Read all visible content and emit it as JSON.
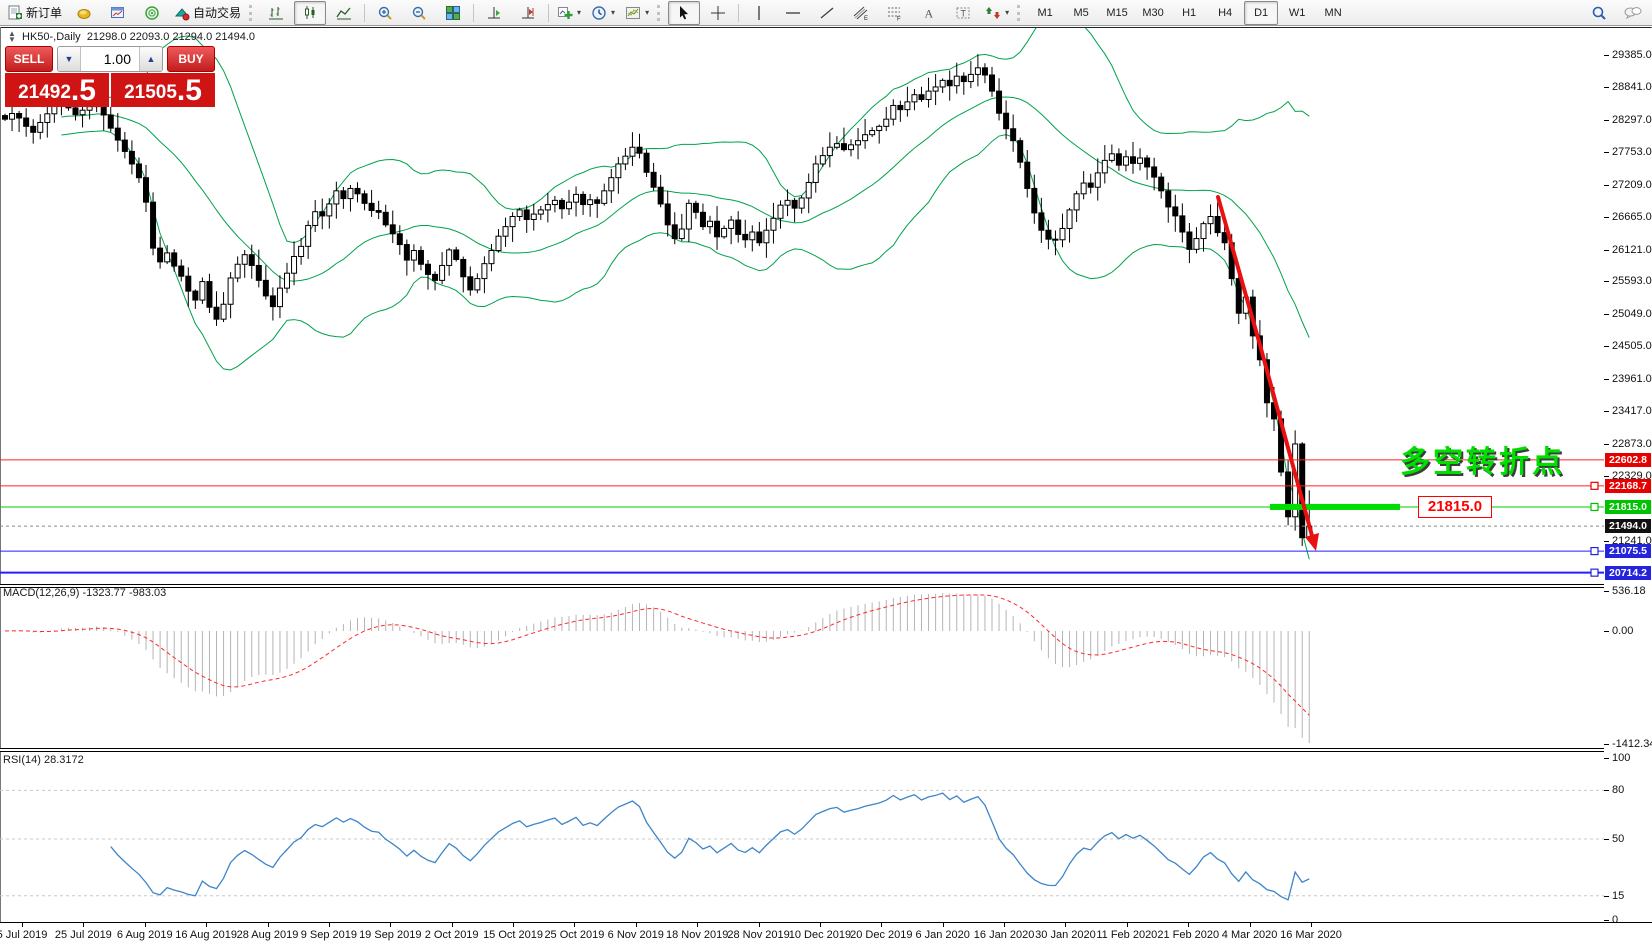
{
  "toolbar": {
    "new_order_label": "新订单",
    "autotrading_label": "自动交易",
    "timeframes": [
      "M1",
      "M5",
      "M15",
      "M30",
      "H1",
      "H4",
      "D1",
      "W1",
      "MN"
    ],
    "active_timeframe": "D1"
  },
  "title": {
    "symbol_period": "HK50-,Daily",
    "ohlc": "21298.0 22093.0 21294.0 21494.0"
  },
  "trade_panel": {
    "sell_label": "SELL",
    "buy_label": "BUY",
    "volume": "1.00",
    "sell_price": "21492",
    "sell_pip": ".5",
    "buy_price": "21505",
    "buy_pip": ".5"
  },
  "annotation": {
    "text": "多空转折点",
    "price_label": "21815.0",
    "text_color": "#00e000",
    "box_color": "#ff0000"
  },
  "chart_data": {
    "type": "candlestick",
    "symbol": "HK50-",
    "timeframe": "Daily",
    "closes": [
      28310,
      28405,
      28330,
      28190,
      28090,
      28255,
      28400,
      28530,
      28600,
      28500,
      28385,
      28460,
      28520,
      28590,
      28380,
      28160,
      27960,
      27770,
      27560,
      27330,
      26920,
      26150,
      25920,
      26070,
      25850,
      25680,
      25430,
      25280,
      25590,
      25160,
      24960,
      25210,
      25650,
      25880,
      26040,
      25860,
      25610,
      25350,
      25170,
      25480,
      25730,
      26010,
      26180,
      26530,
      26760,
      26690,
      26890,
      27110,
      26980,
      27150,
      27060,
      26900,
      26780,
      26750,
      26540,
      26390,
      26210,
      25950,
      26110,
      25880,
      25710,
      25610,
      25860,
      26120,
      25960,
      25670,
      25450,
      25640,
      25890,
      26110,
      26350,
      26510,
      26680,
      26790,
      26630,
      26720,
      26790,
      26880,
      26950,
      26810,
      26920,
      27050,
      26880,
      26960,
      26900,
      27110,
      27330,
      27560,
      27690,
      27840,
      27740,
      27420,
      27170,
      26890,
      26540,
      26310,
      26470,
      26900,
      26750,
      26510,
      26600,
      26340,
      26480,
      26620,
      26380,
      26290,
      26420,
      26240,
      26450,
      26650,
      26870,
      26950,
      26820,
      26990,
      27250,
      27560,
      27700,
      27840,
      27900,
      27800,
      27880,
      27950,
      28050,
      28120,
      28190,
      28310,
      28540,
      28470,
      28600,
      28720,
      28640,
      28780,
      28850,
      28960,
      28870,
      29030,
      28940,
      29060,
      29170,
      29050,
      28780,
      28410,
      28150,
      27950,
      27590,
      27150,
      26740,
      26450,
      26300,
      26290,
      26480,
      26790,
      27060,
      27240,
      27170,
      27410,
      27620,
      27730,
      27540,
      27680,
      27570,
      27660,
      27510,
      27340,
      27110,
      26840,
      26690,
      26420,
      26130,
      26310,
      26560,
      26680,
      26410,
      26240,
      25640,
      25060,
      25330,
      24680,
      24280,
      23560,
      23290,
      22400,
      21650,
      22870,
      21300,
      21494
    ],
    "last_ohlc": {
      "open": 21298.0,
      "high": 22093.0,
      "low": 21294.0,
      "close": 21494.0
    },
    "indicators": {
      "bollinger": {
        "period": 20,
        "deviation": 2,
        "color": "#00A24A"
      },
      "macd": {
        "label": "MACD(12,26,9) -1323.77 -983.03",
        "fast": 12,
        "slow": 26,
        "signal": 9,
        "current_macd": -1323.77,
        "current_signal": -983.03,
        "scale": [
          536.18,
          0.0,
          -1412.34
        ],
        "bar_color": "#b4b4b4",
        "signal_color": "#ff2a2a"
      },
      "rsi": {
        "label": "RSI(14) 28.3172",
        "period": 14,
        "current": 28.3172,
        "scale": [
          100,
          80,
          50,
          15,
          0
        ],
        "line_color": "#3d85c8"
      }
    },
    "price_axis_ticks": [
      29385.0,
      28841.0,
      28297.0,
      27753.0,
      27209.0,
      26665.0,
      26121.0,
      25593.0,
      25049.0,
      24505.0,
      23961.0,
      23417.0,
      22873.0,
      22329.0,
      21241.0
    ],
    "price_badges": [
      {
        "label": "22602.8",
        "price": 22602.8,
        "color": "#e60000"
      },
      {
        "label": "22168.7",
        "price": 22168.7,
        "color": "#e60000",
        "handle": true
      },
      {
        "label": "21815.0",
        "price": 21815.0,
        "color": "#00c300",
        "handle": true
      },
      {
        "label": "21494.0",
        "price": 21494.0,
        "color": "#111111"
      },
      {
        "label": "21075.5",
        "price": 21075.5,
        "color": "#2424dd",
        "handle": true
      },
      {
        "label": "20714.2",
        "price": 20714.2,
        "color": "#2424dd",
        "handle": true
      }
    ],
    "levels": [
      {
        "price": 22602.8,
        "color": "#ff2020",
        "width": 1
      },
      {
        "price": 22168.7,
        "color": "#ff2020",
        "width": 1
      },
      {
        "price": 21815.0,
        "color": "#00cc00",
        "width": 1
      },
      {
        "price": 21075.5,
        "color": "#2020ff",
        "width": 1
      },
      {
        "price": 20714.2,
        "color": "#2020ff",
        "width": 2
      }
    ],
    "date_labels": [
      "5 Jul 2019",
      "25 Jul 2019",
      "6 Aug 2019",
      "16 Aug 2019",
      "28 Aug 2019",
      "9 Sep 2019",
      "19 Sep 2019",
      "2 Oct 2019",
      "15 Oct 2019",
      "25 Oct 2019",
      "6 Nov 2019",
      "18 Nov 2019",
      "28 Nov 2019",
      "10 Dec 2019",
      "20 Dec 2019",
      "6 Jan 2020",
      "16 Jan 2020",
      "30 Jan 2020",
      "11 Feb 2020",
      "21 Feb 2020",
      "4 Mar 2020",
      "16 Mar 2020"
    ]
  }
}
